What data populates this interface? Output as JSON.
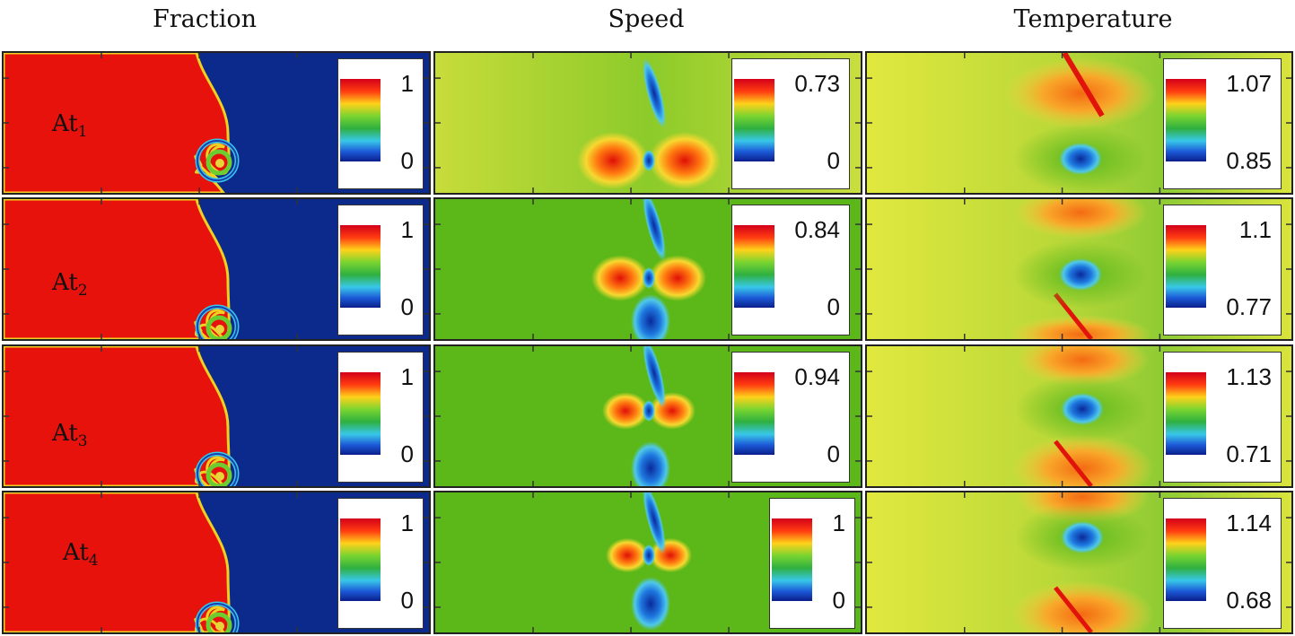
{
  "columns": {
    "fraction": "Fraction",
    "speed": "Speed",
    "temperature": "Temperature"
  },
  "rows": [
    {
      "label": "At",
      "sub": "1",
      "fraction": {
        "max": "1",
        "min": "0"
      },
      "speed": {
        "max": "0.73",
        "min": "0"
      },
      "temperature": {
        "max": "1.07",
        "min": "0.85"
      }
    },
    {
      "label": "At",
      "sub": "2",
      "fraction": {
        "max": "1",
        "min": "0"
      },
      "speed": {
        "max": "0.84",
        "min": "0"
      },
      "temperature": {
        "max": "1.1",
        "min": "0.77"
      }
    },
    {
      "label": "At",
      "sub": "3",
      "fraction": {
        "max": "1",
        "min": "0"
      },
      "speed": {
        "max": "0.94",
        "min": "0"
      },
      "temperature": {
        "max": "1.13",
        "min": "0.71"
      }
    },
    {
      "label": "At",
      "sub": "4",
      "fraction": {
        "max": "1",
        "min": "0"
      },
      "speed": {
        "max": "1",
        "min": "0"
      },
      "temperature": {
        "max": "1.14",
        "min": "0.68"
      }
    }
  ],
  "colors": {
    "red": "#e8120c",
    "blue": "#0b2a8c",
    "green": "#5cb818",
    "yellow": "#d9e23a",
    "orange": "#f58a1a",
    "cyan": "#3fb8e8"
  }
}
